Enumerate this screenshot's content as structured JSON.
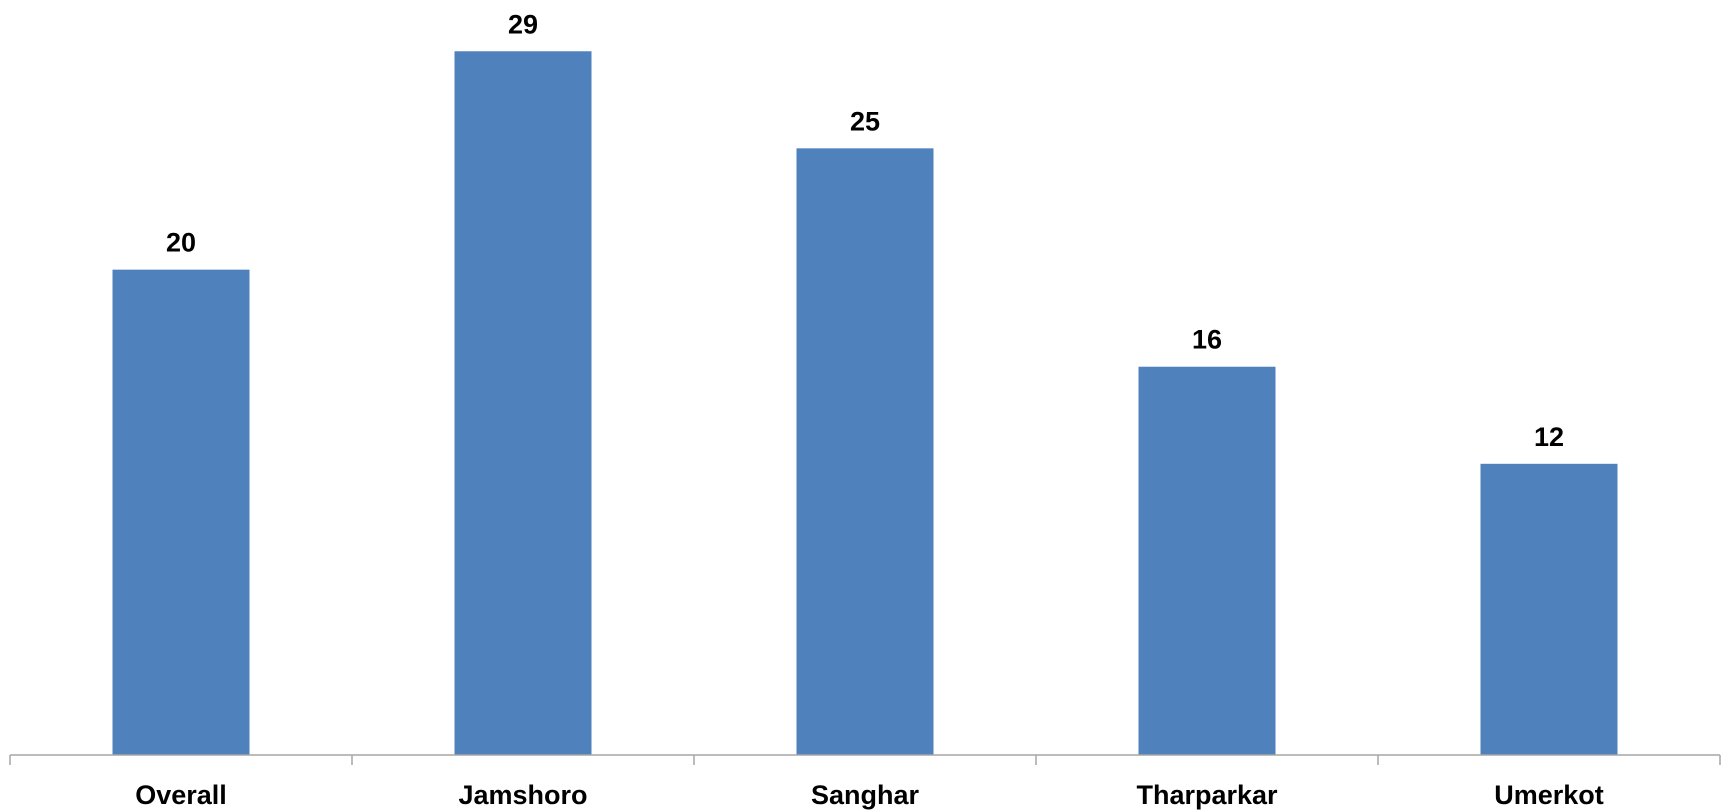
{
  "chart_data": {
    "type": "bar",
    "categories": [
      "Overall",
      "Jamshoro",
      "Sanghar",
      "Tharparkar",
      "Umerkot"
    ],
    "values": [
      20,
      29,
      25,
      16,
      12
    ],
    "title": "",
    "xlabel": "",
    "ylabel": "",
    "ylim": [
      0,
      30
    ],
    "grid": false,
    "legend": "none",
    "bar_color": "#4F81BD",
    "data_labels": true
  }
}
